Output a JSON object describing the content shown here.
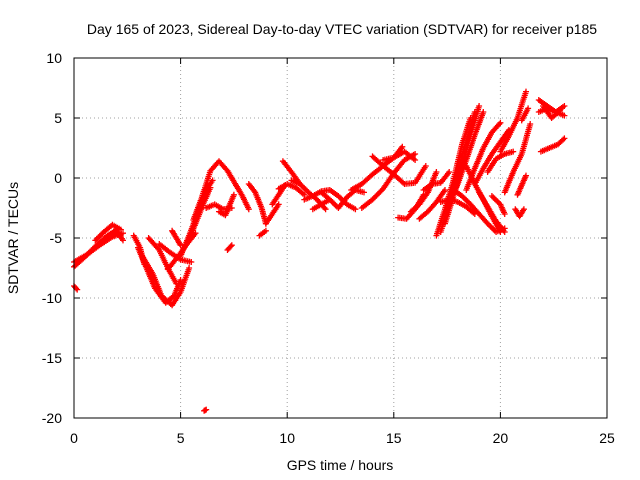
{
  "chart_data": {
    "type": "scatter",
    "title": "Day 165 of 2023, Sidereal Day-to-day VTEC variation (SDTVAR) for receiver p185",
    "xlabel": "GPS time / hours",
    "ylabel": "SDTVAR / TECUs",
    "xlim": [
      0,
      25
    ],
    "ylim": [
      -20,
      10
    ],
    "xticks": [
      "0",
      "5",
      "10",
      "15",
      "20",
      "25"
    ],
    "yticks": [
      "-20",
      "-15",
      "-10",
      "-5",
      "0",
      "5",
      "10"
    ],
    "grid": true,
    "marker": "+",
    "color": "#ff0000",
    "tracks": [
      {
        "x": [
          0.0,
          0.5,
          1.0,
          1.5,
          2.0
        ],
        "y": [
          -7.4,
          -6.6,
          -5.7,
          -4.9,
          -4.3
        ]
      },
      {
        "x": [
          0.0,
          0.6,
          1.2,
          1.8,
          2.3
        ],
        "y": [
          -7.0,
          -6.4,
          -5.6,
          -4.9,
          -4.6
        ]
      },
      {
        "x": [
          1.0,
          1.4,
          1.8,
          2.2
        ],
        "y": [
          -5.2,
          -4.5,
          -3.9,
          -4.3
        ]
      },
      {
        "x": [
          1.2,
          1.6,
          2.0,
          2.3
        ],
        "y": [
          -5.4,
          -5.0,
          -4.4,
          -5.2
        ]
      },
      {
        "x": [
          0.0,
          0.15
        ],
        "y": [
          -9.0,
          -9.3
        ]
      },
      {
        "x": [
          2.8,
          3.1,
          3.3
        ],
        "y": [
          -4.8,
          -5.8,
          -7.2
        ]
      },
      {
        "x": [
          3.0,
          3.4,
          3.8,
          4.3,
          4.7,
          5.0
        ],
        "y": [
          -5.8,
          -7.5,
          -9.2,
          -10.4,
          -9.8,
          -8.5
        ]
      },
      {
        "x": [
          3.2,
          3.7,
          4.1,
          4.6,
          5.0,
          5.4
        ],
        "y": [
          -6.5,
          -8.0,
          -9.8,
          -10.6,
          -9.5,
          -7.5
        ]
      },
      {
        "x": [
          3.5,
          4.0,
          4.4,
          4.8
        ],
        "y": [
          -5.0,
          -6.0,
          -7.5,
          -8.8
        ]
      },
      {
        "x": [
          4.0,
          4.5,
          5.0,
          5.5
        ],
        "y": [
          -5.5,
          -6.2,
          -6.8,
          -7.0
        ]
      },
      {
        "x": [
          4.4,
          4.9,
          5.3,
          5.7
        ],
        "y": [
          -7.6,
          -6.5,
          -5.5,
          -4.6
        ]
      },
      {
        "x": [
          4.6,
          4.8,
          5.0
        ],
        "y": [
          -4.4,
          -5.0,
          -5.6
        ]
      },
      {
        "x": [
          5.0,
          5.4,
          5.8,
          6.2,
          6.5
        ],
        "y": [
          -6.5,
          -4.8,
          -2.9,
          -1.0,
          -0.2
        ]
      },
      {
        "x": [
          5.3,
          5.7,
          6.1,
          6.4
        ],
        "y": [
          -5.5,
          -3.8,
          -2.0,
          -0.8
        ]
      },
      {
        "x": [
          5.6,
          6.0,
          6.4,
          6.8,
          7.2,
          7.6
        ],
        "y": [
          -3.5,
          -1.6,
          0.6,
          1.4,
          0.6,
          -0.6
        ]
      },
      {
        "x": [
          6.2,
          6.6,
          7.0,
          7.4
        ],
        "y": [
          -2.5,
          -2.2,
          -2.6,
          -2.5
        ]
      },
      {
        "x": [
          6.8,
          7.1,
          7.5
        ],
        "y": [
          -2.8,
          -3.1,
          -1.4
        ]
      },
      {
        "x": [
          7.2,
          7.4
        ],
        "y": [
          -6.0,
          -5.6
        ]
      },
      {
        "x": [
          6.1,
          6.2
        ],
        "y": [
          -19.4,
          -19.3
        ]
      },
      {
        "x": [
          7.6,
          7.9,
          8.2
        ],
        "y": [
          -0.6,
          -1.5,
          -2.6
        ]
      },
      {
        "x": [
          8.2,
          8.5,
          8.8,
          9.0
        ],
        "y": [
          -0.5,
          -1.2,
          -2.5,
          -3.8
        ]
      },
      {
        "x": [
          8.7,
          9.0
        ],
        "y": [
          -4.8,
          -4.4
        ]
      },
      {
        "x": [
          9.0,
          9.3,
          9.6
        ],
        "y": [
          -3.8,
          -3.0,
          -2.2
        ]
      },
      {
        "x": [
          9.3,
          9.6,
          9.9
        ],
        "y": [
          -2.2,
          -1.4,
          -0.6
        ]
      },
      {
        "x": [
          9.6,
          10.0,
          10.4,
          10.8
        ],
        "y": [
          -0.9,
          -0.5,
          -0.8,
          -1.4
        ]
      },
      {
        "x": [
          9.8,
          10.2,
          10.6
        ],
        "y": [
          1.4,
          0.5,
          -0.5
        ]
      },
      {
        "x": [
          10.2,
          10.6,
          11.0,
          11.4,
          11.8
        ],
        "y": [
          -0.2,
          -0.5,
          -1.2,
          -1.8,
          -2.6
        ]
      },
      {
        "x": [
          10.8,
          11.2,
          11.6,
          12.0,
          12.4,
          12.8,
          13.2
        ],
        "y": [
          -1.8,
          -1.5,
          -1.1,
          -1.0,
          -1.5,
          -2.2,
          -2.6
        ]
      },
      {
        "x": [
          11.6,
          12.0,
          12.4,
          12.8,
          13.2,
          13.6
        ],
        "y": [
          -1.2,
          -1.8,
          -2.5,
          -1.6,
          -1.0,
          -1.2
        ]
      },
      {
        "x": [
          11.2,
          11.6,
          12.0
        ],
        "y": [
          -2.6,
          -2.2,
          -1.8
        ]
      },
      {
        "x": [
          13.0,
          13.5,
          14.0,
          14.5,
          15.0,
          15.4
        ],
        "y": [
          -1.0,
          -0.5,
          0.3,
          1.0,
          1.7,
          2.6
        ]
      },
      {
        "x": [
          13.5,
          14.0,
          14.5,
          15.0,
          15.5,
          16.0
        ],
        "y": [
          -2.5,
          -1.8,
          -0.9,
          0.4,
          1.5,
          2.0
        ]
      },
      {
        "x": [
          14.0,
          14.5,
          15.0,
          15.5,
          16.0,
          16.5
        ],
        "y": [
          1.8,
          1.0,
          0.3,
          -0.5,
          -0.4,
          1.0
        ]
      },
      {
        "x": [
          14.5,
          15.0,
          15.5,
          16.0
        ],
        "y": [
          1.5,
          1.7,
          2.2,
          1.5
        ]
      },
      {
        "x": [
          15.2,
          15.6,
          16.0,
          16.4
        ],
        "y": [
          -3.3,
          -3.4,
          -2.6,
          -1.4
        ]
      },
      {
        "x": [
          15.8,
          16.2,
          16.6,
          17.0
        ],
        "y": [
          -2.8,
          -2.2,
          -1.2,
          0.5
        ]
      },
      {
        "x": [
          16.4,
          16.8,
          17.2,
          17.6
        ],
        "y": [
          -1.0,
          -0.5,
          -0.4,
          0.5
        ]
      },
      {
        "x": [
          16.2,
          16.6,
          17.0,
          17.4
        ],
        "y": [
          -3.4,
          -2.8,
          -2.0,
          -1.0
        ]
      },
      {
        "x": [
          17.0,
          17.4,
          17.8,
          18.2,
          18.6
        ],
        "y": [
          -4.8,
          -2.6,
          -0.2,
          2.8,
          5.0
        ]
      },
      {
        "x": [
          17.2,
          17.6,
          18.0,
          18.4,
          18.8
        ],
        "y": [
          -4.5,
          -2.0,
          0.5,
          3.0,
          5.5
        ]
      },
      {
        "x": [
          17.4,
          17.8,
          18.2,
          18.6,
          19.0
        ],
        "y": [
          -3.8,
          -1.5,
          1.0,
          3.6,
          6.0
        ]
      },
      {
        "x": [
          17.6,
          18.0,
          18.4,
          18.8,
          19.2
        ],
        "y": [
          -2.2,
          -0.5,
          1.5,
          3.6,
          5.5
        ]
      },
      {
        "x": [
          18.4,
          18.8,
          19.2,
          19.6,
          20.0
        ],
        "y": [
          -1.0,
          0.8,
          2.5,
          3.8,
          4.6
        ]
      },
      {
        "x": [
          18.8,
          19.2,
          19.6,
          20.0,
          20.4
        ],
        "y": [
          -0.5,
          0.8,
          2.0,
          3.0,
          4.0
        ]
      },
      {
        "x": [
          19.4,
          19.8,
          20.2,
          20.6
        ],
        "y": [
          0.5,
          1.6,
          2.0,
          2.2
        ]
      },
      {
        "x": [
          17.2,
          17.6,
          18.0,
          18.4,
          18.8
        ],
        "y": [
          -2.0,
          -1.8,
          -2.0,
          -2.4,
          -3.0
        ]
      },
      {
        "x": [
          17.8,
          18.2,
          18.6,
          19.0,
          19.4,
          19.8,
          20.2
        ],
        "y": [
          -1.0,
          -1.5,
          -2.2,
          -3.0,
          -3.8,
          -4.5,
          -4.2
        ]
      },
      {
        "x": [
          18.4,
          18.8,
          19.2,
          19.6,
          20.0
        ],
        "y": [
          1.0,
          -0.5,
          -1.8,
          -3.2,
          -4.5
        ]
      },
      {
        "x": [
          19.0,
          19.4,
          19.8,
          20.2
        ],
        "y": [
          -1.2,
          -2.4,
          -3.6,
          -4.5
        ]
      },
      {
        "x": [
          19.6,
          20.0,
          20.2
        ],
        "y": [
          -1.5,
          -2.2,
          -3.0
        ]
      },
      {
        "x": [
          20.0,
          20.4,
          20.8,
          21.2
        ],
        "y": [
          2.2,
          3.5,
          5.0,
          7.2
        ]
      },
      {
        "x": [
          20.2,
          20.6,
          21.0,
          21.4
        ],
        "y": [
          -1.2,
          0.5,
          2.0,
          4.5
        ]
      },
      {
        "x": [
          20.8,
          21.0,
          21.2
        ],
        "y": [
          -1.4,
          -0.6,
          0.2
        ]
      },
      {
        "x": [
          20.7,
          20.9,
          21.1
        ],
        "y": [
          -2.6,
          -3.2,
          -2.6
        ]
      },
      {
        "x": [
          21.0,
          21.3
        ],
        "y": [
          4.8,
          5.8
        ]
      },
      {
        "x": [
          21.8,
          22.2,
          22.6,
          23.0
        ],
        "y": [
          6.5,
          6.0,
          5.5,
          6.0
        ]
      },
      {
        "x": [
          21.8,
          22.2,
          22.6,
          23.0
        ],
        "y": [
          5.5,
          5.8,
          5.5,
          5.2
        ]
      },
      {
        "x": [
          22.0,
          22.4,
          22.8
        ],
        "y": [
          6.0,
          5.0,
          5.6
        ]
      },
      {
        "x": [
          21.9,
          22.3,
          22.7,
          23.0
        ],
        "y": [
          2.2,
          2.5,
          2.8,
          3.3
        ]
      }
    ]
  }
}
